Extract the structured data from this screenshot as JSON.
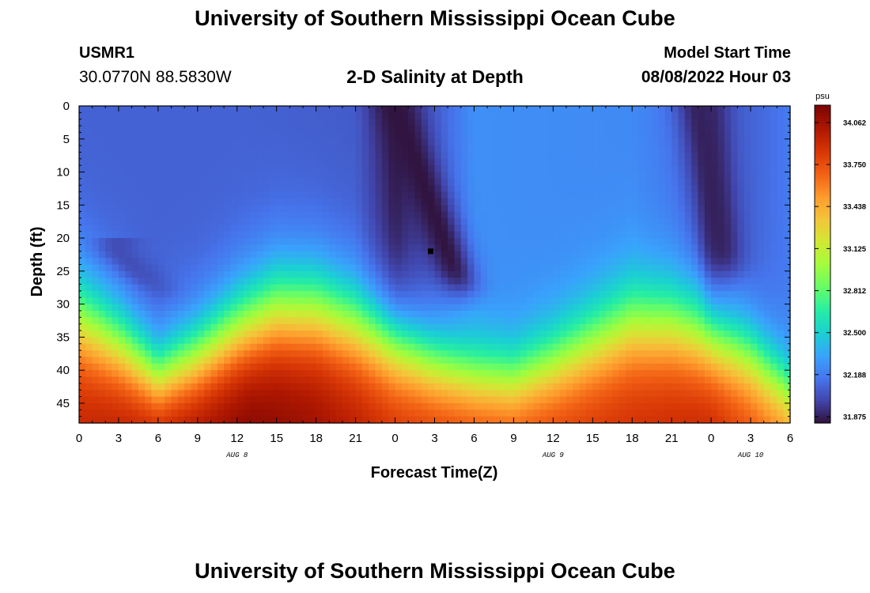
{
  "header": {
    "title": "University of Southern Mississippi Ocean Cube",
    "station_id": "USMR1",
    "station_coords": "30.0770N  88.5830W",
    "plot_title": "2-D Salinity at Depth",
    "model_start_label": "Model Start Time",
    "model_start_value": "08/08/2022 Hour 03"
  },
  "footer": {
    "title": "University of Southern Mississippi Ocean Cube"
  },
  "chart_data": {
    "type": "heatmap",
    "variable": "Salinity",
    "units": "psu",
    "xlabel": "Forecast Time(Z)",
    "ylabel": "Depth (ft)",
    "x_hours_range": [
      0,
      54
    ],
    "x_tick_hours": [
      0,
      3,
      6,
      9,
      12,
      15,
      18,
      21,
      24,
      27,
      30,
      33,
      36,
      39,
      42,
      45,
      48,
      51,
      54
    ],
    "x_tick_labels": [
      "0",
      "3",
      "6",
      "9",
      "12",
      "15",
      "18",
      "21",
      "0",
      "3",
      "6",
      "9",
      "12",
      "15",
      "18",
      "21",
      "0",
      "3",
      "6"
    ],
    "day_labels": [
      {
        "text": "AUG 8",
        "hour": 12
      },
      {
        "text": "AUG 9",
        "hour": 36
      },
      {
        "text": "AUG 10",
        "hour": 51
      }
    ],
    "ylim": [
      0,
      48
    ],
    "y_inverted": true,
    "y_ticks": [
      0,
      5,
      10,
      15,
      20,
      25,
      30,
      35,
      40,
      45
    ],
    "colorbar": {
      "min": 31.875,
      "max": 34.062,
      "tick_values": [
        31.875,
        32.188,
        32.5,
        32.812,
        33.125,
        33.438,
        33.75,
        34.062
      ],
      "tick_labels": [
        "31.875",
        "32.188",
        "32.500",
        "32.812",
        "33.125",
        "33.438",
        "33.750",
        "34.062"
      ]
    },
    "halocline_depth_ft": [
      {
        "hour": 0,
        "depth": 27
      },
      {
        "hour": 3,
        "depth": 31
      },
      {
        "hour": 6,
        "depth": 36
      },
      {
        "hour": 9,
        "depth": 33
      },
      {
        "hour": 12,
        "depth": 29
      },
      {
        "hour": 15,
        "depth": 26
      },
      {
        "hour": 18,
        "depth": 26
      },
      {
        "hour": 21,
        "depth": 28
      },
      {
        "hour": 24,
        "depth": 31
      },
      {
        "hour": 27,
        "depth": 34
      },
      {
        "hour": 30,
        "depth": 36
      },
      {
        "hour": 33,
        "depth": 36.5
      },
      {
        "hour": 36,
        "depth": 34
      },
      {
        "hour": 39,
        "depth": 31
      },
      {
        "hour": 42,
        "depth": 28
      },
      {
        "hour": 45,
        "depth": 28
      },
      {
        "hour": 48,
        "depth": 30
      },
      {
        "hour": 51,
        "depth": 33
      },
      {
        "hour": 54,
        "depth": 38
      }
    ],
    "surface_salinity_psu": [
      {
        "hour": 0,
        "value": 32.12
      },
      {
        "hour": 12,
        "value": 32.12
      },
      {
        "hour": 21,
        "value": 32.1
      },
      {
        "hour": 24,
        "value": 31.9
      },
      {
        "hour": 27,
        "value": 32.1
      },
      {
        "hour": 30,
        "value": 32.27
      },
      {
        "hour": 42,
        "value": 32.25
      },
      {
        "hour": 47,
        "value": 32.15
      },
      {
        "hour": 48,
        "value": 31.95
      },
      {
        "hour": 50,
        "value": 32.1
      },
      {
        "hour": 54,
        "value": 32.2
      }
    ],
    "bottom_salinity_psu": [
      {
        "hour": 0,
        "value": 33.85
      },
      {
        "hour": 9,
        "value": 33.98
      },
      {
        "hour": 13,
        "value": 34.06
      },
      {
        "hour": 18,
        "value": 33.98
      },
      {
        "hour": 24,
        "value": 33.8
      },
      {
        "hour": 33,
        "value": 33.72
      },
      {
        "hour": 42,
        "value": 33.8
      },
      {
        "hour": 48,
        "value": 33.85
      },
      {
        "hour": 54,
        "value": 33.55
      }
    ],
    "low_salinity_plumes": [
      {
        "start_hour": 24,
        "start_depth": 0,
        "end_hour": 29,
        "end_depth": 28,
        "value": 31.88
      },
      {
        "start_hour": 47,
        "start_depth": 0,
        "end_hour": 49,
        "end_depth": 25,
        "value": 31.92
      },
      {
        "start_hour": 3,
        "start_depth": 22,
        "end_hour": 6,
        "end_depth": 28,
        "value": 32.05
      }
    ],
    "marker": {
      "hour": 26.7,
      "depth": 22
    }
  }
}
